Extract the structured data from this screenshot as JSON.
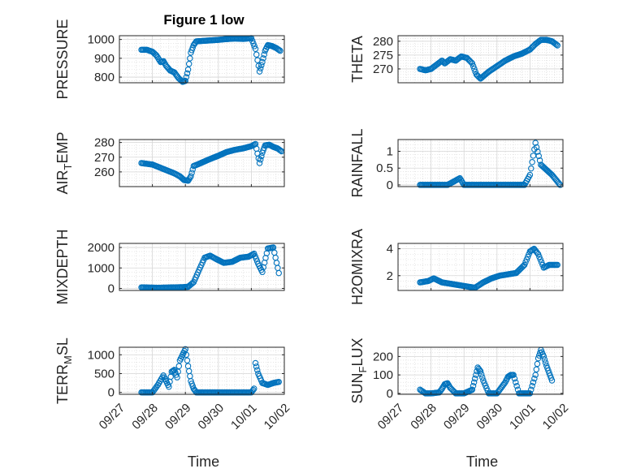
{
  "figure": {
    "title": "Figure 1 low",
    "marker_color": "#0072BD",
    "grid_color": "#d6d6d6",
    "axis_color": "#262626"
  },
  "chart_data": [
    {
      "type": "scatter",
      "ylabel": "PRESSURE",
      "xlabel": "",
      "ylim": [
        770,
        1020
      ],
      "yticks": [
        800,
        900,
        1000
      ],
      "xticks": [],
      "grid": true,
      "x": [
        "09/27 16:00",
        "09/27 20:00",
        "09/28 00:00",
        "09/28 03:00",
        "09/28 06:00",
        "09/28 08:00",
        "09/28 10:00",
        "09/28 13:00",
        "09/28 16:00",
        "09/28 19:00",
        "09/28 22:00",
        "09/29 00:00",
        "09/29 02:00",
        "09/29 04:00",
        "09/29 06:00",
        "09/29 08:00",
        "09/29 12:00",
        "09/29 18:00",
        "09/30 00:00",
        "09/30 06:00",
        "09/30 12:00",
        "09/30 18:00",
        "10/01 00:00",
        "10/01 03:00",
        "10/01 06:00",
        "10/01 08:00",
        "10/01 10:00",
        "10/01 12:00",
        "10/01 15:00",
        "10/01 18:00",
        "10/01 21:00"
      ],
      "y": [
        945,
        945,
        935,
        915,
        880,
        885,
        860,
        835,
        825,
        795,
        775,
        780,
        840,
        930,
        970,
        990,
        992,
        995,
        998,
        1002,
        1005,
        1003,
        1007,
        950,
        830,
        880,
        940,
        970,
        965,
        955,
        940
      ]
    },
    {
      "type": "scatter",
      "ylabel": "THETA",
      "xlabel": "",
      "ylim": [
        265,
        282
      ],
      "yticks": [
        270,
        275,
        280
      ],
      "xticks": [],
      "grid": true,
      "x": [
        "09/27 16:00",
        "09/27 20:00",
        "09/28 00:00",
        "09/28 04:00",
        "09/28 08:00",
        "09/28 10:00",
        "09/28 14:00",
        "09/28 18:00",
        "09/28 22:00",
        "09/29 02:00",
        "09/29 06:00",
        "09/29 09:00",
        "09/29 12:00",
        "09/29 18:00",
        "09/30 00:00",
        "09/30 06:00",
        "09/30 12:00",
        "09/30 18:00",
        "10/01 00:00",
        "10/01 04:00",
        "10/01 08:00",
        "10/01 12:00",
        "10/01 16:00",
        "10/01 20:00"
      ],
      "y": [
        270,
        269.5,
        270,
        271.5,
        273,
        272,
        273.5,
        273,
        274.5,
        274,
        272,
        268,
        266.5,
        269,
        271,
        273,
        274.5,
        275.5,
        277,
        279,
        280.5,
        280.5,
        280,
        278.5
      ]
    },
    {
      "type": "scatter",
      "ylabel": "AIR_TEMP",
      "xlabel": "",
      "ylim": [
        250,
        282
      ],
      "yticks": [
        260,
        270,
        280
      ],
      "xticks": [],
      "grid": true,
      "x": [
        "09/27 16:00",
        "09/27 20:00",
        "09/28 00:00",
        "09/28 04:00",
        "09/28 08:00",
        "09/28 12:00",
        "09/28 16:00",
        "09/28 20:00",
        "09/28 23:00",
        "09/29 02:00",
        "09/29 04:00",
        "09/29 06:00",
        "09/29 10:00",
        "09/29 16:00",
        "09/30 00:00",
        "09/30 06:00",
        "09/30 12:00",
        "09/30 18:00",
        "10/01 00:00",
        "10/01 03:00",
        "10/01 06:00",
        "10/01 08:00",
        "10/01 10:00",
        "10/01 13:00",
        "10/01 16:00",
        "10/01 19:00",
        "10/01 22:00"
      ],
      "y": [
        266,
        265.5,
        265,
        263.5,
        262,
        260.5,
        259,
        257,
        254.5,
        254,
        257,
        264,
        265.5,
        268,
        271,
        273.5,
        275,
        276,
        277.5,
        279,
        266,
        273,
        278,
        278.5,
        277,
        276,
        274
      ]
    },
    {
      "type": "scatter",
      "ylabel": "RAINFALL",
      "xlabel": "",
      "ylim": [
        -0.05,
        1.35
      ],
      "yticks": [
        0,
        0.5,
        1
      ],
      "xticks": [],
      "grid": true,
      "x": [
        "09/27 16:00",
        "09/28 00:00",
        "09/28 12:00",
        "09/28 21:00",
        "09/29 00:00",
        "09/29 12:00",
        "09/30 00:00",
        "09/30 12:00",
        "09/30 20:00",
        "10/01 00:00",
        "10/01 04:00",
        "10/01 08:00",
        "10/01 16:00",
        "10/01 22:00"
      ],
      "y": [
        0,
        0,
        0,
        0.2,
        0,
        0,
        0,
        0,
        0,
        0.3,
        1.25,
        0.6,
        0.3,
        0
      ]
    },
    {
      "type": "scatter",
      "ylabel": "MIXDEPTH",
      "xlabel": "",
      "ylim": [
        -100,
        2200
      ],
      "yticks": [
        0,
        1000,
        2000
      ],
      "xticks": [],
      "grid": true,
      "x": [
        "09/27 16:00",
        "09/27 22:00",
        "09/28 04:00",
        "09/28 10:00",
        "09/28 16:00",
        "09/28 22:00",
        "09/29 02:00",
        "09/29 06:00",
        "09/29 10:00",
        "09/29 14:00",
        "09/29 18:00",
        "09/29 22:00",
        "09/30 04:00",
        "09/30 10:00",
        "09/30 16:00",
        "09/30 22:00",
        "10/01 02:00",
        "10/01 05:00",
        "10/01 08:00",
        "10/01 12:00",
        "10/01 16:00",
        "10/01 20:00"
      ],
      "y": [
        50,
        40,
        30,
        40,
        50,
        60,
        80,
        300,
        900,
        1500,
        1600,
        1450,
        1250,
        1300,
        1500,
        1550,
        1700,
        1200,
        800,
        1950,
        2000,
        750
      ]
    },
    {
      "type": "scatter",
      "ylabel": "H2OMIXRA",
      "xlabel": "",
      "ylim": [
        0.9,
        4.4
      ],
      "yticks": [
        2,
        4
      ],
      "xticks": [],
      "grid": true,
      "x": [
        "09/27 16:00",
        "09/27 22:00",
        "09/28 02:00",
        "09/28 08:00",
        "09/28 14:00",
        "09/28 20:00",
        "09/29 02:00",
        "09/29 08:00",
        "09/29 14:00",
        "09/29 20:00",
        "09/30 02:00",
        "09/30 08:00",
        "09/30 14:00",
        "09/30 20:00",
        "10/01 00:00",
        "10/01 03:00",
        "10/01 06:00",
        "10/01 10:00",
        "10/01 14:00",
        "10/01 20:00"
      ],
      "y": [
        1.5,
        1.6,
        1.8,
        1.5,
        1.4,
        1.3,
        1.2,
        1.1,
        1.5,
        1.8,
        2.0,
        2.1,
        2.2,
        2.8,
        3.8,
        4.0,
        3.6,
        2.6,
        2.8,
        2.8
      ]
    },
    {
      "type": "scatter",
      "ylabel": "TERR_MSL",
      "xlabel": "Time",
      "ylim": [
        -50,
        1200
      ],
      "yticks": [
        0,
        500,
        1000
      ],
      "xticks": [
        "09/27",
        "09/28",
        "09/29",
        "09/30",
        "10/01",
        "10/02"
      ],
      "grid": true,
      "x": [
        "09/27 16:00",
        "09/28 00:00",
        "09/28 04:00",
        "09/28 08:00",
        "09/28 10:00",
        "09/28 12:00",
        "09/28 14:00",
        "09/28 16:00",
        "09/28 18:00",
        "09/28 20:00",
        "09/28 22:00",
        "09/29 00:00",
        "09/29 02:00",
        "09/29 04:00",
        "09/29 06:00",
        "09/29 08:00",
        "09/29 12:00",
        "09/29 18:00",
        "09/30 00:00",
        "09/30 12:00",
        "10/01 00:00",
        "10/01 02:00",
        "10/01 03:00",
        "10/01 05:00",
        "10/01 08:00",
        "10/01 12:00",
        "10/01 16:00",
        "10/01 20:00"
      ],
      "y": [
        0,
        0,
        200,
        450,
        300,
        150,
        550,
        600,
        400,
        850,
        1000,
        1150,
        700,
        300,
        100,
        0,
        0,
        0,
        0,
        0,
        0,
        100,
        780,
        500,
        250,
        200,
        250,
        280
      ]
    },
    {
      "type": "scatter",
      "ylabel": "SUN_FLUX",
      "xlabel": "Time",
      "ylim": [
        -5,
        250
      ],
      "yticks": [
        0,
        100,
        200
      ],
      "xticks": [
        "09/27",
        "09/28",
        "09/29",
        "09/30",
        "10/01",
        "10/02"
      ],
      "grid": true,
      "x": [
        "09/27 16:00",
        "09/27 20:00",
        "09/28 00:00",
        "09/28 06:00",
        "09/28 08:00",
        "09/28 10:00",
        "09/28 12:00",
        "09/28 14:00",
        "09/28 18:00",
        "09/29 00:00",
        "09/29 06:00",
        "09/29 08:00",
        "09/29 10:00",
        "09/29 12:00",
        "09/29 14:00",
        "09/29 18:00",
        "09/30 00:00",
        "09/30 06:00",
        "09/30 08:00",
        "09/30 10:00",
        "09/30 12:00",
        "09/30 16:00",
        "10/01 00:00",
        "10/01 04:00",
        "10/01 06:00",
        "10/01 08:00",
        "10/01 10:00",
        "10/01 12:00",
        "10/01 14:00",
        "10/01 16:00"
      ],
      "y": [
        20,
        0,
        0,
        5,
        25,
        50,
        55,
        30,
        0,
        0,
        20,
        80,
        140,
        120,
        70,
        0,
        0,
        60,
        90,
        100,
        100,
        0,
        0,
        100,
        190,
        235,
        200,
        150,
        110,
        70
      ]
    }
  ]
}
